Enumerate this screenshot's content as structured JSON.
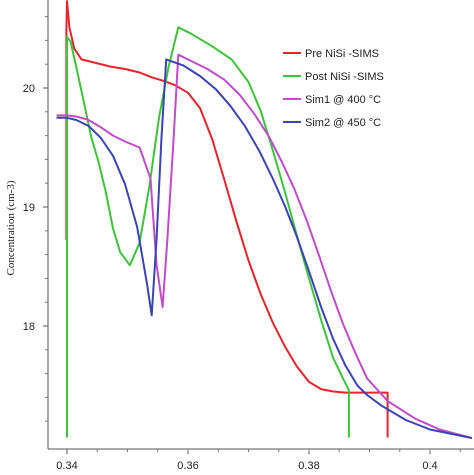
{
  "chart_data": {
    "type": "line",
    "title": "",
    "xlabel": "",
    "ylabel": "Concentration (cm-3)",
    "xlim": [
      0.3395,
      0.4068
    ],
    "ylim": [
      17.06,
      20.73
    ],
    "x_ticks": [
      {
        "value": 0.34,
        "label": "0.34"
      },
      {
        "value": 0.36,
        "label": "0.36"
      },
      {
        "value": 0.38,
        "label": "0.38"
      },
      {
        "value": 0.4,
        "label": "0.4"
      }
    ],
    "y_ticks": [
      {
        "value": 18,
        "label": "18"
      },
      {
        "value": 19,
        "label": "19"
      },
      {
        "value": 20,
        "label": "20"
      }
    ],
    "grid": false,
    "legend_position": "top-right",
    "series": [
      {
        "name": "Pre NiSi -SIMS",
        "color": "#e8232b",
        "points": [
          [
            0.3399,
            18.73
          ],
          [
            0.3399,
            20.48
          ],
          [
            0.34,
            20.73
          ],
          [
            0.3404,
            20.51
          ],
          [
            0.3412,
            20.33
          ],
          [
            0.3424,
            20.24
          ],
          [
            0.3448,
            20.21
          ],
          [
            0.3472,
            20.18
          ],
          [
            0.3496,
            20.16
          ],
          [
            0.352,
            20.13
          ],
          [
            0.354,
            20.09
          ],
          [
            0.356,
            20.06
          ],
          [
            0.358,
            20.02
          ],
          [
            0.36,
            19.96
          ],
          [
            0.362,
            19.83
          ],
          [
            0.364,
            19.57
          ],
          [
            0.366,
            19.23
          ],
          [
            0.368,
            18.88
          ],
          [
            0.37,
            18.55
          ],
          [
            0.372,
            18.27
          ],
          [
            0.374,
            18.03
          ],
          [
            0.376,
            17.83
          ],
          [
            0.378,
            17.66
          ],
          [
            0.38,
            17.53
          ],
          [
            0.382,
            17.47
          ],
          [
            0.384,
            17.45
          ],
          [
            0.386,
            17.44
          ],
          [
            0.39,
            17.44
          ],
          [
            0.393,
            17.44
          ],
          [
            0.393,
            17.28
          ],
          [
            0.393,
            17.07
          ]
        ]
      },
      {
        "name": "Post NiSi -SIMS",
        "color": "#3ec43b",
        "points": [
          [
            0.34,
            17.07
          ],
          [
            0.34,
            20.43
          ],
          [
            0.3406,
            20.39
          ],
          [
            0.3416,
            20.16
          ],
          [
            0.3428,
            19.88
          ],
          [
            0.344,
            19.59
          ],
          [
            0.3452,
            19.38
          ],
          [
            0.3464,
            19.13
          ],
          [
            0.3476,
            18.82
          ],
          [
            0.3488,
            18.62
          ],
          [
            0.3504,
            18.51
          ],
          [
            0.352,
            18.7
          ],
          [
            0.3536,
            19.17
          ],
          [
            0.3552,
            19.75
          ],
          [
            0.3568,
            20.18
          ],
          [
            0.3584,
            20.51
          ],
          [
            0.3604,
            20.46
          ],
          [
            0.364,
            20.35
          ],
          [
            0.3672,
            20.24
          ],
          [
            0.37,
            20.05
          ],
          [
            0.372,
            19.81
          ],
          [
            0.374,
            19.48
          ],
          [
            0.376,
            19.13
          ],
          [
            0.378,
            18.76
          ],
          [
            0.38,
            18.4
          ],
          [
            0.382,
            18.05
          ],
          [
            0.384,
            17.73
          ],
          [
            0.386,
            17.52
          ],
          [
            0.3866,
            17.46
          ],
          [
            0.3866,
            17.07
          ]
        ]
      },
      {
        "name": "Sim1 @ 400 °C",
        "color": "#c04ccb",
        "points": [
          [
            0.3384,
            19.77
          ],
          [
            0.34,
            19.77
          ],
          [
            0.3416,
            19.76
          ],
          [
            0.3436,
            19.73
          ],
          [
            0.3456,
            19.67
          ],
          [
            0.3476,
            19.6
          ],
          [
            0.3496,
            19.55
          ],
          [
            0.352,
            19.5
          ],
          [
            0.3538,
            19.24
          ],
          [
            0.3548,
            18.52
          ],
          [
            0.3558,
            18.16
          ],
          [
            0.3566,
            18.73
          ],
          [
            0.3576,
            19.56
          ],
          [
            0.3584,
            20.28
          ],
          [
            0.3604,
            20.23
          ],
          [
            0.3632,
            20.16
          ],
          [
            0.366,
            20.07
          ],
          [
            0.3686,
            19.94
          ],
          [
            0.371,
            19.78
          ],
          [
            0.3734,
            19.59
          ],
          [
            0.3756,
            19.37
          ],
          [
            0.3776,
            19.15
          ],
          [
            0.3796,
            18.89
          ],
          [
            0.3816,
            18.6
          ],
          [
            0.3836,
            18.3
          ],
          [
            0.3856,
            18.02
          ],
          [
            0.3876,
            17.78
          ],
          [
            0.3896,
            17.56
          ],
          [
            0.393,
            17.37
          ],
          [
            0.3976,
            17.22
          ],
          [
            0.4016,
            17.13
          ],
          [
            0.4068,
            17.06
          ]
        ]
      },
      {
        "name": "Sim2 @ 450 °C",
        "color": "#3b44b4",
        "points": [
          [
            0.3384,
            19.75
          ],
          [
            0.34,
            19.75
          ],
          [
            0.3416,
            19.73
          ],
          [
            0.3436,
            19.68
          ],
          [
            0.3456,
            19.58
          ],
          [
            0.3476,
            19.43
          ],
          [
            0.3496,
            19.19
          ],
          [
            0.3516,
            18.83
          ],
          [
            0.3532,
            18.36
          ],
          [
            0.354,
            18.09
          ],
          [
            0.3548,
            18.72
          ],
          [
            0.3556,
            19.57
          ],
          [
            0.3564,
            20.24
          ],
          [
            0.3592,
            20.19
          ],
          [
            0.362,
            20.1
          ],
          [
            0.3646,
            19.99
          ],
          [
            0.367,
            19.85
          ],
          [
            0.3694,
            19.68
          ],
          [
            0.3718,
            19.47
          ],
          [
            0.374,
            19.24
          ],
          [
            0.376,
            19.01
          ],
          [
            0.378,
            18.75
          ],
          [
            0.38,
            18.46
          ],
          [
            0.382,
            18.16
          ],
          [
            0.384,
            17.89
          ],
          [
            0.386,
            17.67
          ],
          [
            0.388,
            17.5
          ],
          [
            0.3896,
            17.42
          ],
          [
            0.392,
            17.33
          ],
          [
            0.396,
            17.21
          ],
          [
            0.4,
            17.13
          ],
          [
            0.4068,
            17.06
          ]
        ]
      }
    ]
  }
}
